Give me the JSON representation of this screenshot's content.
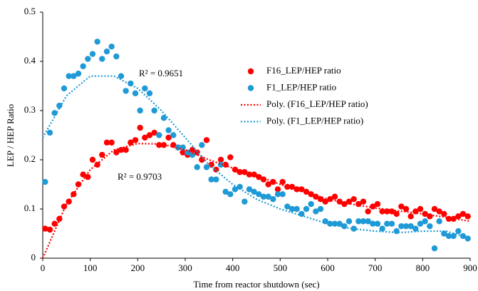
{
  "chart_data": {
    "type": "scatter",
    "xlabel": "Time from reactor shutdown (sec)",
    "ylabel": "LEP / HEP Ratio",
    "xlim": [
      0,
      900
    ],
    "xticks": [
      0,
      100,
      200,
      300,
      400,
      500,
      600,
      700,
      800,
      900
    ],
    "ylim": [
      0,
      0.5
    ],
    "yticks": [
      0,
      0.1,
      0.2,
      0.3,
      0.4,
      0.5
    ],
    "annotations": [
      "R² = 0.9651",
      "R² = 0.9703"
    ],
    "series": [
      {
        "name": "F16_LEP/HEP ratio",
        "color": "#ff0000",
        "style": "marker",
        "x": [
          5,
          15,
          25,
          35,
          45,
          55,
          65,
          75,
          85,
          95,
          105,
          115,
          125,
          135,
          145,
          155,
          165,
          175,
          185,
          195,
          205,
          215,
          225,
          235,
          245,
          255,
          265,
          275,
          285,
          295,
          305,
          315,
          325,
          335,
          345,
          355,
          365,
          375,
          385,
          395,
          405,
          415,
          425,
          435,
          445,
          455,
          465,
          475,
          485,
          495,
          505,
          515,
          525,
          535,
          545,
          555,
          565,
          575,
          585,
          595,
          605,
          615,
          625,
          635,
          645,
          655,
          665,
          675,
          685,
          695,
          705,
          715,
          725,
          735,
          745,
          755,
          765,
          775,
          785,
          795,
          805,
          815,
          825,
          835,
          845,
          855,
          865,
          875,
          885,
          895
        ],
        "values": [
          0.06,
          0.058,
          0.07,
          0.08,
          0.105,
          0.115,
          0.13,
          0.15,
          0.17,
          0.165,
          0.2,
          0.19,
          0.21,
          0.235,
          0.235,
          0.215,
          0.22,
          0.22,
          0.235,
          0.24,
          0.265,
          0.245,
          0.25,
          0.255,
          0.23,
          0.23,
          0.245,
          0.23,
          0.225,
          0.215,
          0.21,
          0.22,
          0.215,
          0.2,
          0.24,
          0.19,
          0.18,
          0.2,
          0.19,
          0.205,
          0.18,
          0.175,
          0.175,
          0.17,
          0.17,
          0.165,
          0.16,
          0.15,
          0.155,
          0.14,
          0.155,
          0.145,
          0.145,
          0.14,
          0.14,
          0.135,
          0.13,
          0.125,
          0.12,
          0.115,
          0.12,
          0.125,
          0.115,
          0.11,
          0.115,
          0.12,
          0.11,
          0.115,
          0.095,
          0.105,
          0.11,
          0.095,
          0.095,
          0.095,
          0.09,
          0.105,
          0.1,
          0.085,
          0.095,
          0.1,
          0.09,
          0.085,
          0.1,
          0.095,
          0.09,
          0.08,
          0.08,
          0.085,
          0.09,
          0.085
        ]
      },
      {
        "name": "F1_LEP/HEP ratio",
        "color": "#1f9ad6",
        "style": "marker",
        "x": [
          5,
          15,
          25,
          35,
          45,
          55,
          65,
          75,
          85,
          95,
          105,
          115,
          125,
          135,
          145,
          155,
          165,
          175,
          185,
          195,
          205,
          215,
          225,
          235,
          245,
          255,
          265,
          275,
          285,
          295,
          305,
          315,
          325,
          335,
          345,
          355,
          365,
          375,
          385,
          395,
          405,
          415,
          425,
          435,
          445,
          455,
          465,
          475,
          485,
          495,
          505,
          515,
          525,
          535,
          545,
          555,
          565,
          575,
          585,
          595,
          605,
          615,
          625,
          635,
          645,
          655,
          665,
          675,
          685,
          695,
          705,
          715,
          725,
          735,
          745,
          755,
          765,
          775,
          785,
          795,
          805,
          815,
          825,
          835,
          845,
          855,
          865,
          875,
          885,
          895
        ],
        "values": [
          0.155,
          0.255,
          0.295,
          0.31,
          0.345,
          0.37,
          0.37,
          0.375,
          0.39,
          0.405,
          0.415,
          0.44,
          0.405,
          0.42,
          0.43,
          0.41,
          0.37,
          0.34,
          0.355,
          0.335,
          0.3,
          0.345,
          0.335,
          0.3,
          0.25,
          0.285,
          0.26,
          0.25,
          0.225,
          0.225,
          0.215,
          0.21,
          0.185,
          0.23,
          0.185,
          0.16,
          0.16,
          0.19,
          0.135,
          0.13,
          0.14,
          0.145,
          0.115,
          0.14,
          0.135,
          0.13,
          0.125,
          0.125,
          0.12,
          0.13,
          0.13,
          0.105,
          0.1,
          0.1,
          0.09,
          0.1,
          0.11,
          0.095,
          0.1,
          0.075,
          0.07,
          0.07,
          0.07,
          0.065,
          0.075,
          0.06,
          0.075,
          0.075,
          0.075,
          0.07,
          0.07,
          0.06,
          0.07,
          0.07,
          0.055,
          0.065,
          0.065,
          0.065,
          0.06,
          0.07,
          0.075,
          0.065,
          0.02,
          0.075,
          0.05,
          0.045,
          0.045,
          0.055,
          0.045,
          0.04
        ]
      },
      {
        "name": "Poly. (F16_LEP/HEP ratio)",
        "color": "#ff0000",
        "style": "dotted",
        "x": [
          0,
          50,
          100,
          150,
          200,
          250,
          300,
          350,
          400,
          450,
          500,
          550,
          600,
          650,
          700,
          750,
          800,
          850,
          900
        ],
        "values": [
          0,
          0.11,
          0.18,
          0.22,
          0.233,
          0.232,
          0.22,
          0.2,
          0.183,
          0.168,
          0.15,
          0.135,
          0.12,
          0.11,
          0.102,
          0.096,
          0.09,
          0.083,
          0.075
        ]
      },
      {
        "name": "Poly. (F1_LEP/HEP ratio)",
        "color": "#1f9ad6",
        "style": "dotted",
        "x": [
          0,
          50,
          100,
          150,
          200,
          250,
          300,
          350,
          400,
          450,
          500,
          550,
          600,
          650,
          700,
          750,
          800,
          850,
          900
        ],
        "values": [
          0.245,
          0.33,
          0.37,
          0.37,
          0.345,
          0.3,
          0.245,
          0.19,
          0.15,
          0.12,
          0.1,
          0.085,
          0.07,
          0.06,
          0.055,
          0.052,
          0.055,
          0.055,
          0.04
        ]
      }
    ]
  }
}
